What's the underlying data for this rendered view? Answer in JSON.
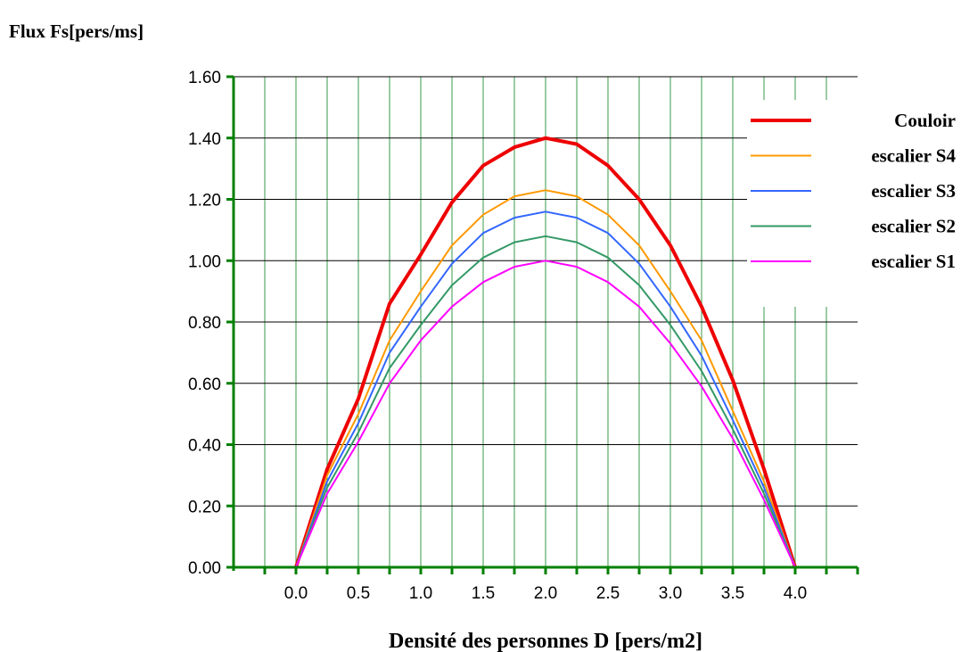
{
  "chart_data": {
    "type": "line",
    "ylabel": "Flux Fs[pers/ms]",
    "xlabel": "Densité des personnes D [pers/m2]",
    "xlim": [
      -0.5,
      4.5
    ],
    "ylim": [
      0,
      1.6
    ],
    "x_ticks": [
      "0.0",
      "0.5",
      "1.0",
      "1.5",
      "2.0",
      "2.5",
      "3.0",
      "3.5",
      "4.0"
    ],
    "y_ticks": [
      "0.00",
      "0.20",
      "0.40",
      "0.60",
      "0.80",
      "1.00",
      "1.20",
      "1.40",
      "1.60"
    ],
    "grid": true,
    "legend_position": "top-right",
    "x": [
      0,
      0.25,
      0.5,
      0.75,
      1.0,
      1.25,
      1.5,
      1.75,
      2.0,
      2.25,
      2.5,
      2.75,
      3.0,
      3.25,
      3.5,
      3.75,
      4.0
    ],
    "series": [
      {
        "name": "Couloir",
        "color": "#ee0000",
        "width": 4,
        "values": [
          0,
          0.32,
          0.55,
          0.86,
          1.02,
          1.19,
          1.31,
          1.37,
          1.4,
          1.38,
          1.31,
          1.2,
          1.05,
          0.85,
          0.61,
          0.32,
          0
        ]
      },
      {
        "name": "escalier S4",
        "color": "#ff9900",
        "width": 2,
        "values": [
          0,
          0.3,
          0.5,
          0.74,
          0.9,
          1.05,
          1.15,
          1.21,
          1.23,
          1.21,
          1.15,
          1.05,
          0.9,
          0.74,
          0.51,
          0.28,
          0
        ]
      },
      {
        "name": "escalier S3",
        "color": "#3366ff",
        "width": 2,
        "values": [
          0,
          0.28,
          0.47,
          0.7,
          0.85,
          0.99,
          1.09,
          1.14,
          1.16,
          1.14,
          1.09,
          0.99,
          0.85,
          0.69,
          0.48,
          0.26,
          0
        ]
      },
      {
        "name": "escalier S2",
        "color": "#339966",
        "width": 2,
        "values": [
          0,
          0.26,
          0.44,
          0.65,
          0.79,
          0.92,
          1.01,
          1.06,
          1.08,
          1.06,
          1.01,
          0.92,
          0.79,
          0.64,
          0.45,
          0.24,
          0
        ]
      },
      {
        "name": "escalier S1",
        "color": "#ff00ff",
        "width": 2,
        "values": [
          0,
          0.24,
          0.41,
          0.6,
          0.74,
          0.85,
          0.93,
          0.98,
          1.0,
          0.98,
          0.93,
          0.85,
          0.73,
          0.59,
          0.42,
          0.22,
          0
        ]
      }
    ]
  }
}
